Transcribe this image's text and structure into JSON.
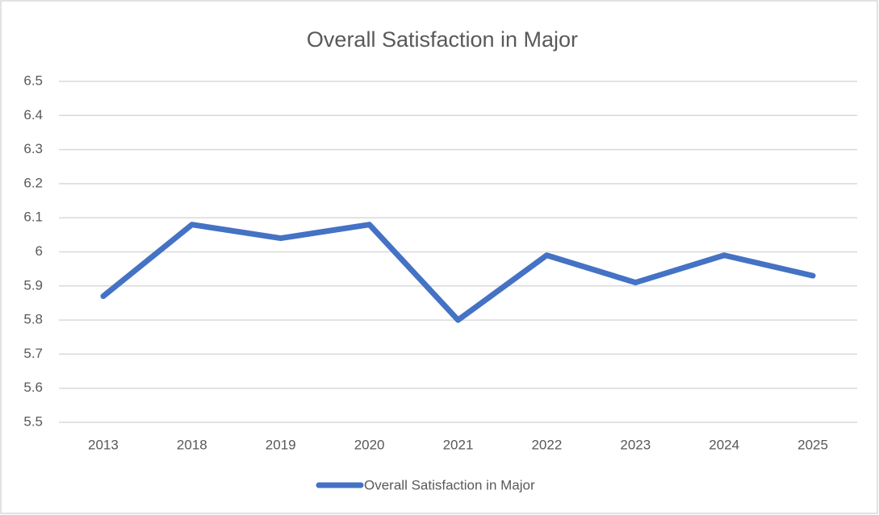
{
  "chart_data": {
    "type": "line",
    "title": "Overall Satisfaction in Major",
    "categories": [
      "2013",
      "2018",
      "2019",
      "2020",
      "2021",
      "2022",
      "2023",
      "2024",
      "2025"
    ],
    "series": [
      {
        "name": "Overall Satisfaction in Major",
        "color": "#4472c4",
        "values": [
          5.87,
          6.08,
          6.04,
          6.08,
          5.8,
          5.99,
          5.91,
          5.99,
          5.93
        ]
      }
    ],
    "ylim": [
      5.5,
      6.5
    ],
    "yticks": [
      5.5,
      5.6,
      5.7,
      5.8,
      5.9,
      6,
      6.1,
      6.2,
      6.3,
      6.4,
      6.5
    ],
    "grid": true,
    "legend": "bottom"
  }
}
